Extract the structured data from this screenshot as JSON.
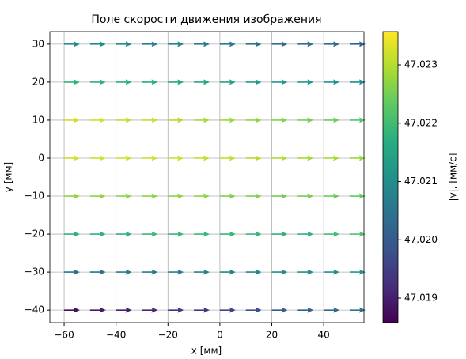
{
  "chart_data": {
    "type": "quiver",
    "title": "Поле скорости движения изображения",
    "xlabel": "x [мм]",
    "ylabel": "y [мм]",
    "x": [
      -60,
      -50,
      -40,
      -30,
      -20,
      -10,
      0,
      10,
      20,
      30,
      40,
      50
    ],
    "y": [
      -40,
      -30,
      -20,
      -10,
      0,
      10,
      20,
      30
    ],
    "values": [
      [
        47.0188,
        47.0189,
        47.019,
        47.0191,
        47.0193,
        47.0194,
        47.0196,
        47.0198,
        47.02,
        47.0201,
        47.0203,
        47.0205
      ],
      [
        47.0205,
        47.0205,
        47.0206,
        47.0206,
        47.0207,
        47.0208,
        47.0208,
        47.0209,
        47.021,
        47.021,
        47.0211,
        47.0212
      ],
      [
        47.0218,
        47.0218,
        47.0218,
        47.0219,
        47.0219,
        47.0219,
        47.0219,
        47.0219,
        47.0218,
        47.0218,
        47.022,
        47.0222
      ],
      [
        47.0227,
        47.0227,
        47.0227,
        47.0227,
        47.0227,
        47.0227,
        47.0226,
        47.0226,
        47.0225,
        47.0225,
        47.0224,
        47.0223
      ],
      [
        47.0232,
        47.0232,
        47.0232,
        47.0232,
        47.0232,
        47.0231,
        47.0231,
        47.023,
        47.023,
        47.0229,
        47.0229,
        47.0228
      ],
      [
        47.0232,
        47.0232,
        47.0231,
        47.0231,
        47.023,
        47.0229,
        47.0228,
        47.0227,
        47.0226,
        47.0225,
        47.0224,
        47.0222
      ],
      [
        47.0218,
        47.0218,
        47.0217,
        47.0217,
        47.0216,
        47.0215,
        47.0214,
        47.0213,
        47.0212,
        47.0212,
        47.0211,
        47.021
      ],
      [
        47.021,
        47.021,
        47.0209,
        47.0208,
        47.0208,
        47.0207,
        47.0206,
        47.0205,
        47.0204,
        47.0204,
        47.0203,
        47.0202
      ]
    ],
    "xlim": [
      -65.5,
      55.5
    ],
    "ylim": [
      -43.3,
      33.3
    ],
    "xticks": [
      {
        "value": -60,
        "label": "−60"
      },
      {
        "value": -40,
        "label": "−40"
      },
      {
        "value": -20,
        "label": "−20"
      },
      0,
      20,
      40
    ],
    "yticks": [
      {
        "value": -40,
        "label": "−40"
      },
      {
        "value": -30,
        "label": "−30"
      },
      {
        "value": -20,
        "label": "−20"
      },
      {
        "value": -10,
        "label": "−10"
      },
      0,
      10,
      20,
      30
    ],
    "grid": true,
    "colormap": "viridis",
    "colorbar_label": "|v|, [мм/с]",
    "clim": [
      47.01858,
      47.02357
    ],
    "cticks": [
      47.019,
      {
        "value": 47.02,
        "label": "47.020"
      },
      47.021,
      47.022,
      47.023
    ]
  }
}
